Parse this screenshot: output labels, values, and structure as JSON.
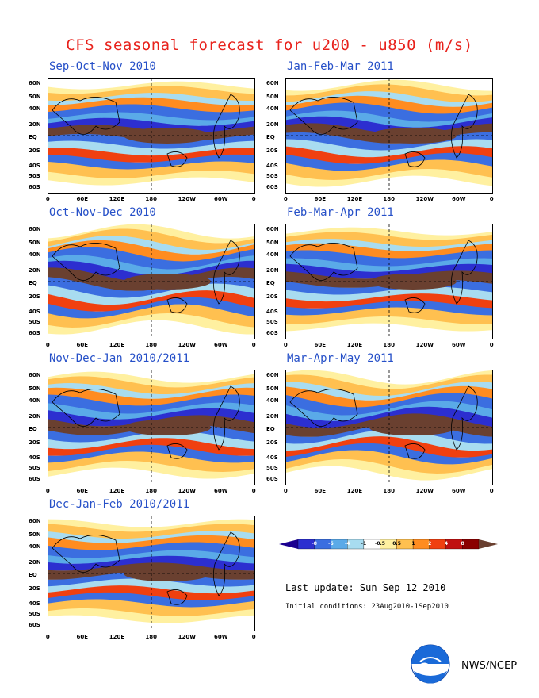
{
  "title": "CFS seasonal forecast for u200 - u850 (m/s)",
  "panels": [
    {
      "id": "son",
      "title": "Sep-Oct-Nov 2010"
    },
    {
      "id": "jfm",
      "title": "Jan-Feb-Mar 2011"
    },
    {
      "id": "ond",
      "title": "Oct-Nov-Dec 2010"
    },
    {
      "id": "fma",
      "title": "Feb-Mar-Apr 2011"
    },
    {
      "id": "ndj",
      "title": "Nov-Dec-Jan 2010/2011"
    },
    {
      "id": "mam",
      "title": "Mar-Apr-May 2011"
    },
    {
      "id": "djf",
      "title": "Dec-Jan-Feb 2010/2011"
    }
  ],
  "lat_labels": [
    "60N",
    "50N",
    "40N",
    "20N",
    "EQ",
    "20S",
    "40S",
    "50S",
    "60S"
  ],
  "lon_labels": [
    "0",
    "60E",
    "120E",
    "180",
    "120W",
    "60W",
    "0"
  ],
  "colorbar": {
    "labels": [
      "-8",
      "-6",
      "-4",
      "-1",
      "-0.5",
      "0.5",
      "1",
      "2",
      "4",
      "8"
    ],
    "colors": [
      "#1b0090",
      "#2c2fd0",
      "#3b6ee0",
      "#5aaae8",
      "#a8dcf0",
      "#ffffff",
      "#fff0a0",
      "#ffc050",
      "#ff8c20",
      "#f04010",
      "#c01010",
      "#8a0000",
      "#6a4030"
    ]
  },
  "last_update": "Last update: Sun Sep 12 2010",
  "initial_conditions": "Initial conditions: 23Aug2010-1Sep2010",
  "agency": "NWS/NCEP",
  "logo_icon": "noaa-logo-icon"
}
